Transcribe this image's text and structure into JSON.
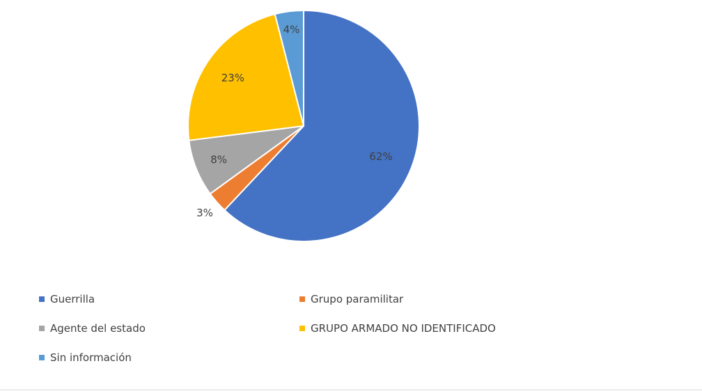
{
  "chart_data": {
    "type": "pie",
    "title": "",
    "start_angle_deg": 0,
    "direction": "clockwise",
    "slices": [
      {
        "name": "Guerrilla",
        "value": 62,
        "label": "62%",
        "color": "#4472C4"
      },
      {
        "name": "Grupo paramilitar",
        "value": 3,
        "label": "3%",
        "color": "#ED7D31"
      },
      {
        "name": "Agente del estado",
        "value": 8,
        "label": "8%",
        "color": "#A5A5A5"
      },
      {
        "name": "GRUPO ARMADO NO IDENTIFICADO",
        "value": 23,
        "label": "23%",
        "color": "#FFC000"
      },
      {
        "name": "Sin información",
        "value": 4,
        "label": "4%",
        "color": "#5B9BD5"
      }
    ],
    "legend_position": "bottom",
    "legend_columns": 2
  }
}
